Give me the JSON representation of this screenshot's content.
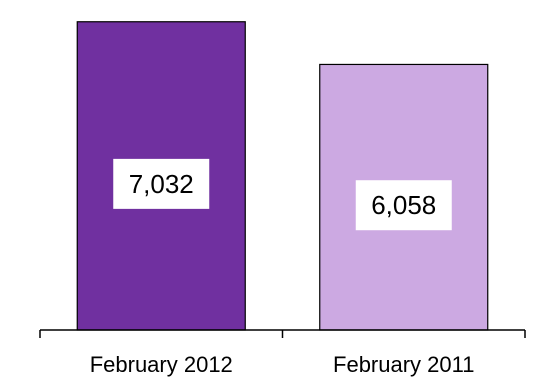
{
  "chart_data": {
    "type": "bar",
    "categories": [
      "February 2012",
      "February 2011"
    ],
    "values": [
      7032,
      6058
    ],
    "data_labels": [
      "7,032",
      "6,058"
    ],
    "colors": [
      "#7030a0",
      "#cca9e2"
    ],
    "ylim": [
      0,
      7300
    ],
    "grid": false,
    "legend": "none",
    "title": "",
    "xlabel": "",
    "ylabel": ""
  }
}
